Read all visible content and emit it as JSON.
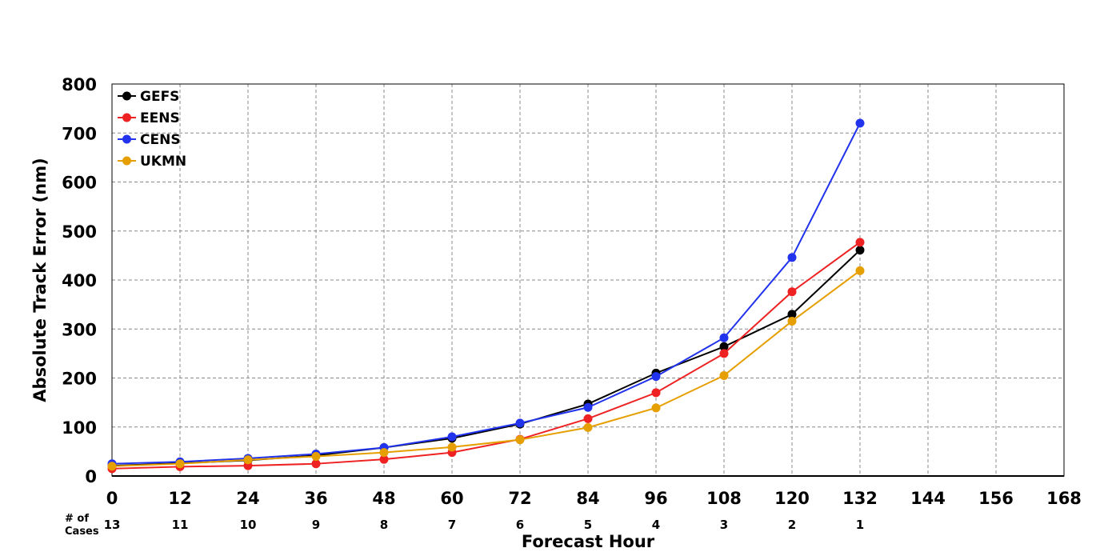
{
  "chart_data": {
    "type": "line",
    "xlabel": "Forecast Hour",
    "ylabel": "Absolute Track Error (nm)",
    "xlim": [
      0,
      168
    ],
    "ylim": [
      0,
      800
    ],
    "x_ticks": [
      0,
      12,
      24,
      36,
      48,
      60,
      72,
      84,
      96,
      108,
      120,
      132,
      144,
      156,
      168
    ],
    "y_ticks": [
      0,
      100,
      200,
      300,
      400,
      500,
      600,
      700,
      800
    ],
    "grid": true,
    "legend_position": "top-left",
    "cases_header": [
      "# of",
      "Cases"
    ],
    "cases": [
      {
        "x": 0,
        "n": "13"
      },
      {
        "x": 12,
        "n": "11"
      },
      {
        "x": 24,
        "n": "10"
      },
      {
        "x": 36,
        "n": "9"
      },
      {
        "x": 48,
        "n": "8"
      },
      {
        "x": 60,
        "n": "7"
      },
      {
        "x": 72,
        "n": "6"
      },
      {
        "x": 84,
        "n": "5"
      },
      {
        "x": 96,
        "n": "4"
      },
      {
        "x": 108,
        "n": "3"
      },
      {
        "x": 120,
        "n": "2"
      },
      {
        "x": 132,
        "n": "1"
      }
    ],
    "x": [
      0,
      12,
      24,
      36,
      48,
      60,
      72,
      84,
      96,
      108,
      120,
      132
    ],
    "series": [
      {
        "name": "GEFS",
        "color": "#000000",
        "values": [
          21,
          26,
          32,
          42,
          58,
          77,
          106,
          147,
          210,
          264,
          330,
          461
        ]
      },
      {
        "name": "EENS",
        "color": "#ee2222",
        "values": [
          15,
          19,
          21,
          25,
          34,
          48,
          75,
          117,
          170,
          250,
          376,
          477
        ]
      },
      {
        "name": "CENS",
        "color": "#2233ee",
        "values": [
          25,
          29,
          36,
          45,
          58,
          80,
          108,
          140,
          203,
          282,
          446,
          720
        ]
      },
      {
        "name": "UKMN",
        "color": "#e69f00",
        "values": [
          20,
          25,
          33,
          40,
          48,
          59,
          74,
          99,
          139,
          205,
          316,
          419
        ]
      }
    ]
  }
}
